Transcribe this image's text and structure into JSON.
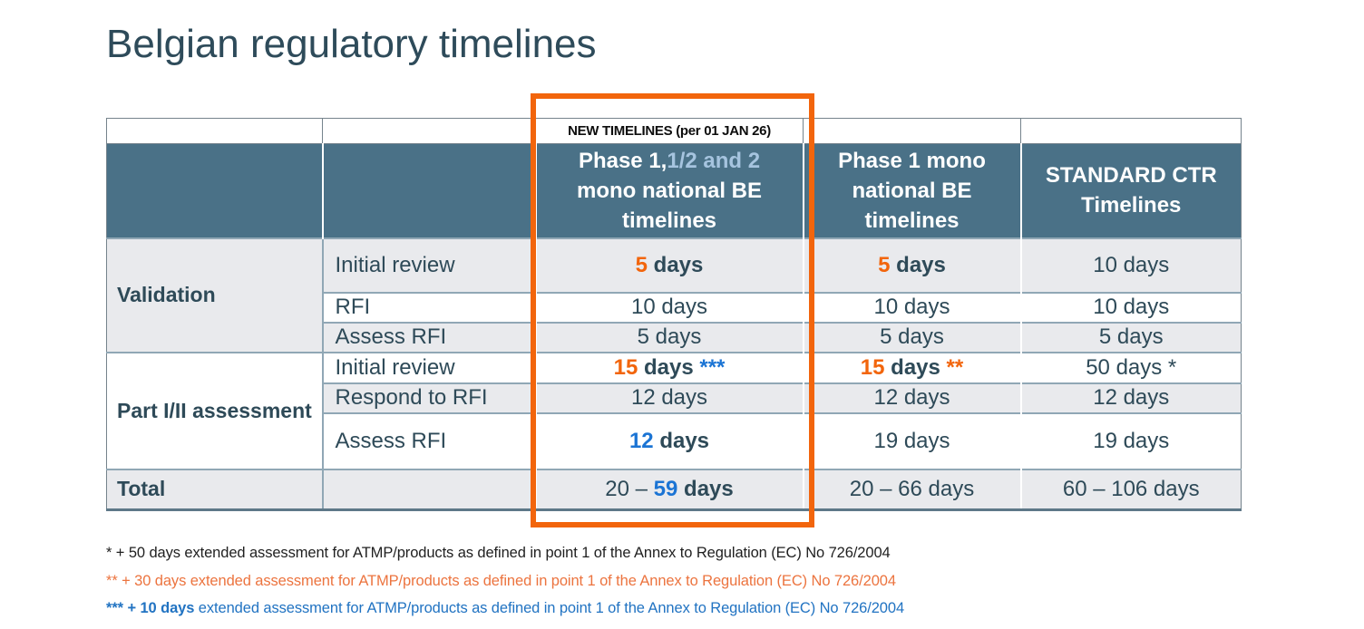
{
  "title": "Belgian regulatory timelines",
  "table": {
    "banner": "NEW TIMELINES (per 01 JAN 26)",
    "headers": {
      "phase112_a": "Phase 1,",
      "phase112_b": "1/2 and 2",
      "phase112_c": "mono national BE timelines",
      "phase1mono": "Phase 1 mono national BE timelines",
      "standard_ctr": "STANDARD CTR Timelines"
    },
    "row_groups": {
      "validation": "Validation",
      "part_i_ii": "Part I/II assessment",
      "total": "Total"
    },
    "rows": {
      "validation_initial_review": {
        "label": "Initial review",
        "new112_num": "5",
        "new112_unit": " days",
        "mono_num": "5",
        "mono_unit": " days",
        "ctr": "10 days"
      },
      "validation_rfi": {
        "label": "RFI",
        "new112": "10 days",
        "mono": "10 days",
        "ctr": "10 days"
      },
      "validation_assess_rfi": {
        "label": "Assess RFI",
        "new112": "5 days",
        "mono": "5 days",
        "ctr": "5 days"
      },
      "part_initial_review": {
        "label": "Initial review",
        "new112_num": "15",
        "new112_unit": " days ",
        "new112_stars": "***",
        "mono_num": "15",
        "mono_unit": " days ",
        "mono_stars": "**",
        "ctr": "50 days *"
      },
      "part_respond_rfi": {
        "label": "Respond to RFI",
        "new112": "12 days",
        "mono": "12 days",
        "ctr": "12 days"
      },
      "part_assess_rfi": {
        "label": "Assess RFI",
        "new112_num": "12",
        "new112_unit": " days",
        "mono": "19 days",
        "ctr": "19 days"
      },
      "total": {
        "new112_pre": "20 – ",
        "new112_num": "59",
        "new112_unit": " days",
        "mono": "20 – 66 days",
        "ctr": "60 – 106 days"
      }
    }
  },
  "footnotes": {
    "f1": "* + 50 days extended assessment for ATMP/products as defined in point 1 of the Annex to Regulation (EC) No 726/2004",
    "f2": "** + 30 days extended assessment for ATMP/products as defined in point 1 of the Annex to Regulation (EC) No 726/2004",
    "f3_bold": "*** + 10 days",
    "f3_rest": " extended assessment for ATMP/products as defined in point 1 of the Annex to Regulation (EC) No 726/2004"
  },
  "colors": {
    "accent_orange": "#F2650C",
    "accent_blue": "#1B74D4",
    "footnote_orange": "#EC743F",
    "footnote_blue": "#2173C2",
    "header_bg": "#4A7187",
    "header_light_blue": "#A6C4DF",
    "row_gray": "#E9EAED",
    "text_dark": "#2E4A58"
  }
}
